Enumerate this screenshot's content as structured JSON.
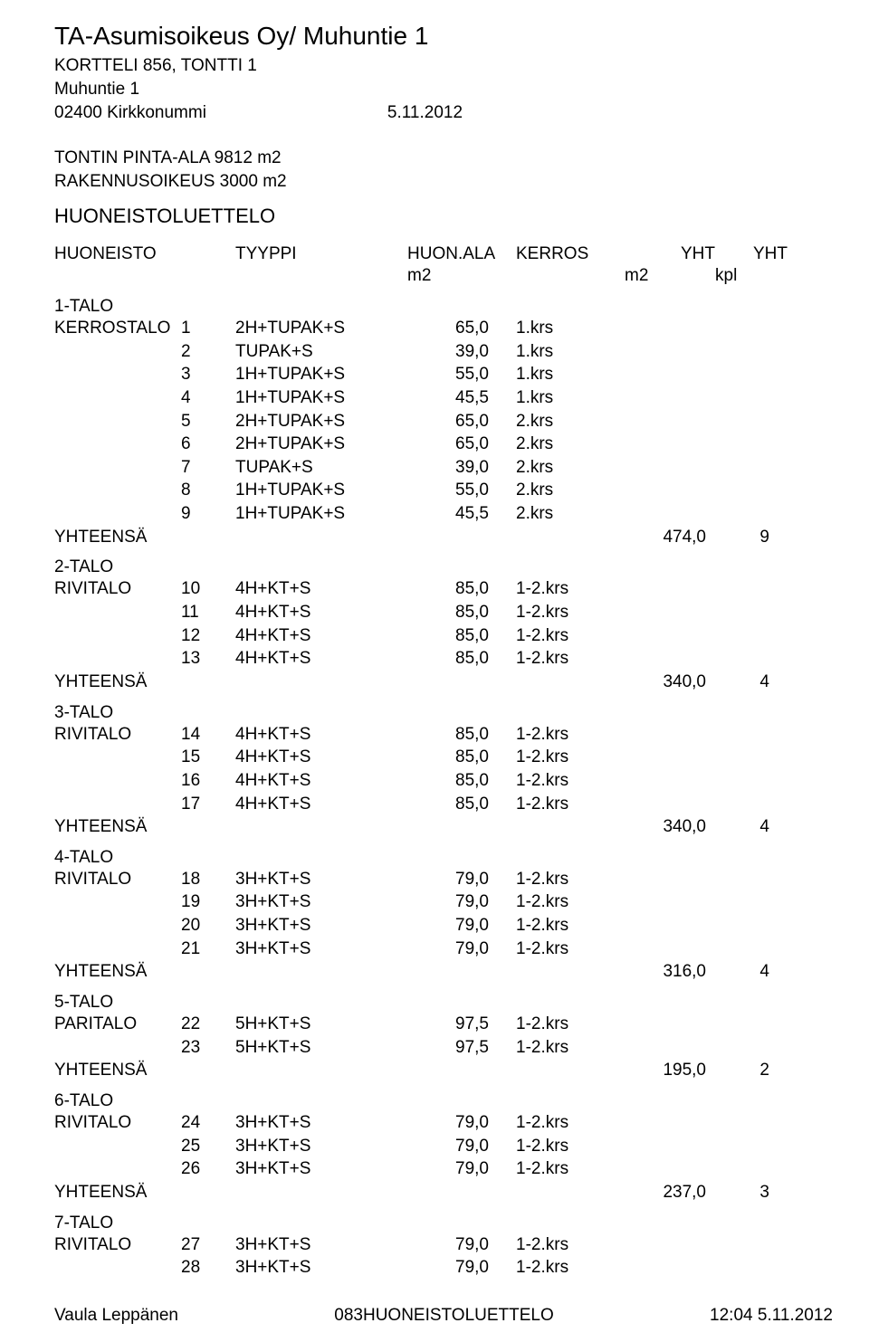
{
  "doc": {
    "title": "TA-Asumisoikeus Oy/ Muhuntie 1",
    "block_lot": "KORTTELI 856, TONTTI 1",
    "street": "Muhuntie 1",
    "city": "02400 Kirkkonummi",
    "date_top": "5.11.2012",
    "lot_area": "TONTIN PINTA-ALA 9812 m2",
    "build_right": "RAKENNUSOIKEUS 3000 m2",
    "heading": "HUONEISTOLUETTELO"
  },
  "columns": {
    "c1": "HUONEISTO",
    "c3": "TYYPPI",
    "c4": "HUON.ALA",
    "c4_sub": "m2",
    "c5": "KERROS",
    "c6": "YHT",
    "c6_sub": "m2",
    "c7": "YHT",
    "c7_sub": "kpl"
  },
  "labels": {
    "yhteensa": "YHTEENSÄ"
  },
  "groups": [
    {
      "group_label": "1-TALO",
      "type_label": "KERROSTALO",
      "rows": [
        {
          "n": "1",
          "t": "2H+TUPAK+S",
          "a": "65,0",
          "k": "1.krs"
        },
        {
          "n": "2",
          "t": "TUPAK+S",
          "a": "39,0",
          "k": "1.krs"
        },
        {
          "n": "3",
          "t": "1H+TUPAK+S",
          "a": "55,0",
          "k": "1.krs"
        },
        {
          "n": "4",
          "t": "1H+TUPAK+S",
          "a": "45,5",
          "k": "1.krs"
        },
        {
          "n": "5",
          "t": "2H+TUPAK+S",
          "a": "65,0",
          "k": "2.krs"
        },
        {
          "n": "6",
          "t": "2H+TUPAK+S",
          "a": "65,0",
          "k": "2.krs"
        },
        {
          "n": "7",
          "t": "TUPAK+S",
          "a": "39,0",
          "k": "2.krs"
        },
        {
          "n": "8",
          "t": "1H+TUPAK+S",
          "a": "55,0",
          "k": "2.krs"
        },
        {
          "n": "9",
          "t": "1H+TUPAK+S",
          "a": "45,5",
          "k": "2.krs"
        }
      ],
      "total_area": "474,0",
      "total_count": "9"
    },
    {
      "group_label": "2-TALO",
      "type_label": "RIVITALO",
      "rows": [
        {
          "n": "10",
          "t": "4H+KT+S",
          "a": "85,0",
          "k": "1-2.krs"
        },
        {
          "n": "11",
          "t": "4H+KT+S",
          "a": "85,0",
          "k": "1-2.krs"
        },
        {
          "n": "12",
          "t": "4H+KT+S",
          "a": "85,0",
          "k": "1-2.krs"
        },
        {
          "n": "13",
          "t": "4H+KT+S",
          "a": "85,0",
          "k": "1-2.krs"
        }
      ],
      "total_area": "340,0",
      "total_count": "4"
    },
    {
      "group_label": "3-TALO",
      "type_label": "RIVITALO",
      "rows": [
        {
          "n": "14",
          "t": "4H+KT+S",
          "a": "85,0",
          "k": "1-2.krs"
        },
        {
          "n": "15",
          "t": "4H+KT+S",
          "a": "85,0",
          "k": "1-2.krs"
        },
        {
          "n": "16",
          "t": "4H+KT+S",
          "a": "85,0",
          "k": "1-2.krs"
        },
        {
          "n": "17",
          "t": "4H+KT+S",
          "a": "85,0",
          "k": "1-2.krs"
        }
      ],
      "total_area": "340,0",
      "total_count": "4"
    },
    {
      "group_label": "4-TALO",
      "type_label": "RIVITALO",
      "rows": [
        {
          "n": "18",
          "t": "3H+KT+S",
          "a": "79,0",
          "k": "1-2.krs"
        },
        {
          "n": "19",
          "t": "3H+KT+S",
          "a": "79,0",
          "k": "1-2.krs"
        },
        {
          "n": "20",
          "t": "3H+KT+S",
          "a": "79,0",
          "k": "1-2.krs"
        },
        {
          "n": "21",
          "t": "3H+KT+S",
          "a": "79,0",
          "k": "1-2.krs"
        }
      ],
      "total_area": "316,0",
      "total_count": "4"
    },
    {
      "group_label": "5-TALO",
      "type_label": "PARITALO",
      "rows": [
        {
          "n": "22",
          "t": "5H+KT+S",
          "a": "97,5",
          "k": "1-2.krs"
        },
        {
          "n": "23",
          "t": "5H+KT+S",
          "a": "97,5",
          "k": "1-2.krs"
        }
      ],
      "total_area": "195,0",
      "total_count": "2"
    },
    {
      "group_label": "6-TALO",
      "type_label": "RIVITALO",
      "rows": [
        {
          "n": "24",
          "t": "3H+KT+S",
          "a": "79,0",
          "k": "1-2.krs"
        },
        {
          "n": "25",
          "t": "3H+KT+S",
          "a": "79,0",
          "k": "1-2.krs"
        },
        {
          "n": "26",
          "t": "3H+KT+S",
          "a": "79,0",
          "k": "1-2.krs"
        }
      ],
      "total_area": "237,0",
      "total_count": "3"
    },
    {
      "group_label": "7-TALO",
      "type_label": "RIVITALO",
      "rows": [
        {
          "n": "27",
          "t": "3H+KT+S",
          "a": "79,0",
          "k": "1-2.krs"
        },
        {
          "n": "28",
          "t": "3H+KT+S",
          "a": "79,0",
          "k": "1-2.krs"
        }
      ]
    }
  ],
  "footer": {
    "left": "Vaula Leppänen",
    "center": "083HUONEISTOLUETTELO",
    "right": "12:04 5.11.2012"
  }
}
